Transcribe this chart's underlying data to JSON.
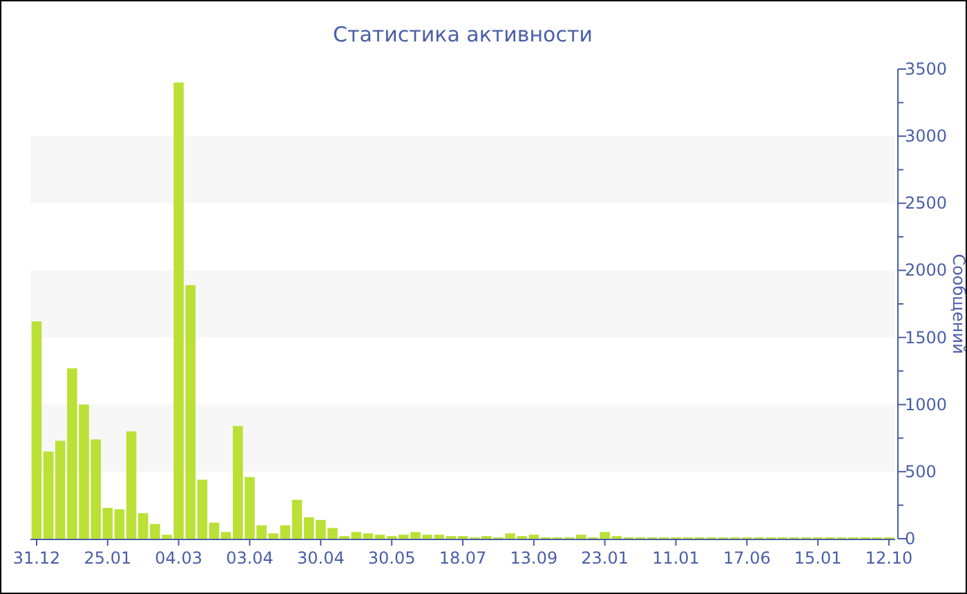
{
  "chart_data": {
    "type": "bar",
    "title": "Статистика активности",
    "ylabel": "Сообщений",
    "color": "#bbe036",
    "categories": [
      "31.12",
      null,
      null,
      null,
      null,
      null,
      "25.01",
      null,
      null,
      null,
      null,
      null,
      "04.03",
      null,
      null,
      null,
      null,
      null,
      "03.04",
      null,
      null,
      null,
      null,
      null,
      "30.04",
      null,
      null,
      null,
      null,
      null,
      "30.05",
      null,
      null,
      null,
      null,
      null,
      "18.07",
      null,
      null,
      null,
      null,
      null,
      "13.09",
      null,
      null,
      null,
      null,
      null,
      "23.01",
      null,
      null,
      null,
      null,
      null,
      "11.01",
      null,
      null,
      null,
      null,
      null,
      "17.06",
      null,
      null,
      null,
      null,
      null,
      "15.01",
      null,
      null,
      null,
      null,
      null,
      "12.10"
    ],
    "values": [
      1620,
      650,
      730,
      1270,
      1000,
      740,
      230,
      220,
      800,
      190,
      110,
      30,
      3400,
      1890,
      440,
      120,
      50,
      840,
      460,
      100,
      40,
      100,
      290,
      160,
      140,
      80,
      20,
      50,
      40,
      30,
      20,
      30,
      50,
      30,
      30,
      20,
      20,
      10,
      20,
      10,
      40,
      20,
      30,
      10,
      10,
      10,
      30,
      10,
      50,
      20,
      10,
      10,
      10,
      10,
      10,
      10,
      10,
      10,
      10,
      10,
      10,
      10,
      10,
      10,
      10,
      10,
      10,
      10,
      10,
      10,
      10,
      10,
      10
    ],
    "ylim": [
      0,
      3500
    ],
    "yticks": [
      0,
      {
        "value": 250,
        "label": null
      },
      500,
      {
        "value": 750,
        "label": null
      },
      1000,
      {
        "value": 1250,
        "label": null
      },
      1500,
      {
        "value": 1750,
        "label": null
      },
      2000,
      {
        "value": 2250,
        "label": null
      },
      2500,
      {
        "value": 2750,
        "label": null
      },
      3000,
      {
        "value": 3250,
        "label": null
      },
      3500
    ]
  }
}
